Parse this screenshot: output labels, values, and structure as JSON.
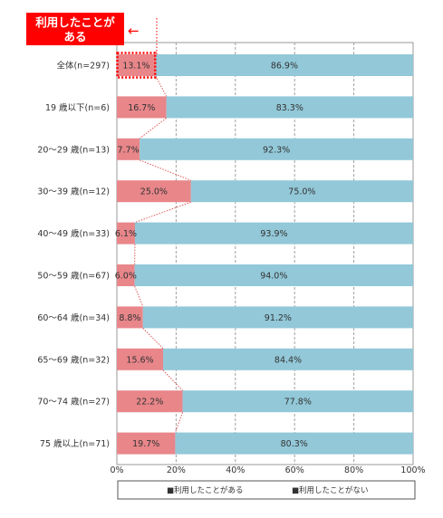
{
  "chart_data": {
    "type": "bar",
    "orientation": "horizontal",
    "stacked": true,
    "categories": [
      "全体(n=297)",
      "19 歳以下(n=6)",
      "20～29 歳(n=13)",
      "30～39 歳(n=12)",
      "40～49 歳(n=33)",
      "50～59 歳(n=67)",
      "60～64 歳(n=34)",
      "65～69 歳(n=32)",
      "70～74 歳(n=27)",
      "75 歳以上(n=71)"
    ],
    "series": [
      {
        "name": "利用したことがある",
        "color": "#e8868a",
        "values": [
          13.1,
          16.7,
          7.7,
          25.0,
          6.1,
          6.0,
          8.8,
          15.6,
          22.2,
          19.7
        ],
        "labels": [
          "13.1%",
          "16.7%",
          "7.7%",
          "25.0%",
          "6.1%",
          "6.0%",
          "8.8%",
          "15.6%",
          "22.2%",
          "19.7%"
        ]
      },
      {
        "name": "利用したことがない",
        "color": "#92c8d8",
        "values": [
          86.9,
          83.3,
          92.3,
          75.0,
          93.9,
          94.0,
          91.2,
          84.4,
          77.8,
          80.3
        ],
        "labels": [
          "86.9%",
          "83.3%",
          "92.3%",
          "75.0%",
          "93.9%",
          "94.0%",
          "91.2%",
          "84.4%",
          "77.8%",
          "80.3%"
        ]
      }
    ],
    "xlim": [
      0,
      100
    ],
    "xticks": [
      "0%",
      "20%",
      "40%",
      "60%",
      "80%",
      "100%"
    ],
    "grid": true,
    "legend_position": "bottom",
    "legend": [
      "■利用したことがある",
      "■利用したことがない"
    ]
  },
  "callout": {
    "lines": [
      "利用したことが",
      "ある"
    ],
    "color": "#ff0000",
    "arrow": "←"
  }
}
